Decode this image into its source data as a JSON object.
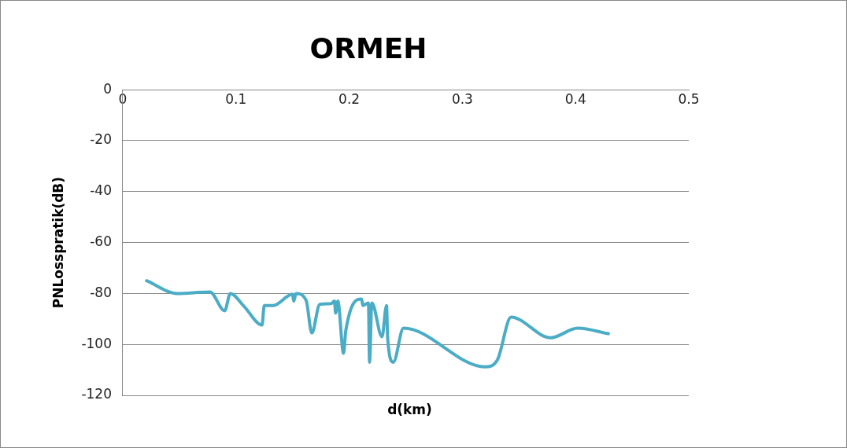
{
  "chart_data": {
    "type": "line",
    "title": "ORMEH",
    "xlabel": "d(km)",
    "ylabel": "PNLosspratik(dB)",
    "xlim": [
      0,
      0.5
    ],
    "xticks": [
      0,
      0.1,
      0.2,
      0.3,
      0.4,
      0.5
    ],
    "ylim": [
      -120,
      0
    ],
    "yticks": [
      -120,
      -100,
      -80,
      -60,
      -40,
      -20,
      0
    ],
    "grid": "y",
    "legend": false,
    "marker": "none",
    "line_style": "solid",
    "series": [
      {
        "color": "#4bacc6",
        "x": [
          0.021,
          0.048,
          0.077,
          0.09,
          0.095,
          0.107,
          0.123,
          0.125,
          0.133,
          0.15,
          0.151,
          0.153,
          0.162,
          0.167,
          0.174,
          0.184,
          0.187,
          0.188,
          0.19,
          0.195,
          0.197,
          0.211,
          0.212,
          0.217,
          0.218,
          0.22,
          0.229,
          0.233,
          0.234,
          0.239,
          0.248,
          0.32,
          0.331,
          0.343,
          0.378,
          0.402,
          0.429
        ],
        "values": [
          -75,
          -80,
          -79.4,
          -86.8,
          -80,
          -85,
          -92.4,
          -84.7,
          -84.7,
          -80.3,
          -83,
          -80,
          -82.8,
          -95.5,
          -84.3,
          -84,
          -83,
          -87.7,
          -83,
          -103.5,
          -94.6,
          -82.2,
          -84.7,
          -83.7,
          -107,
          -83.7,
          -97,
          -84.7,
          -97.7,
          -107,
          -93.6,
          -108.8,
          -106,
          -89.3,
          -97.4,
          -93.6,
          -95.8
        ]
      }
    ]
  }
}
